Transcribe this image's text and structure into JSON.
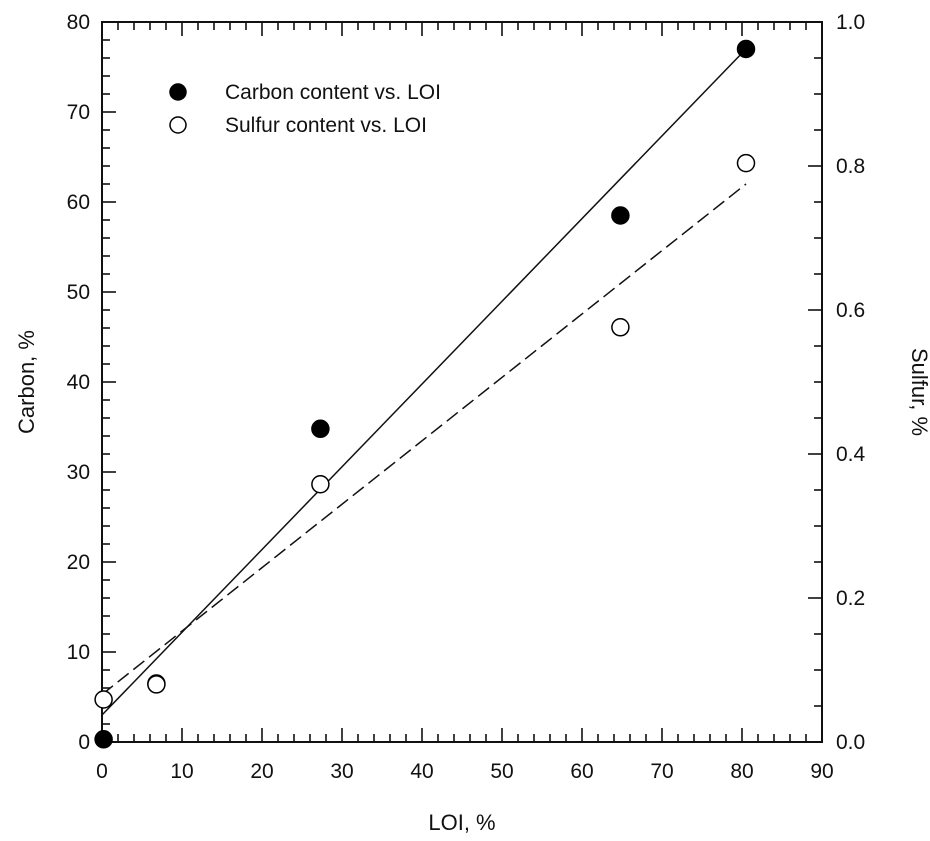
{
  "chart_data": {
    "type": "scatter",
    "xlabel": "LOI, %",
    "ylabel_left": "Carbon, %",
    "ylabel_right": "Sulfur, %",
    "xlim": [
      0,
      90
    ],
    "ylim_left": [
      0,
      80
    ],
    "ylim_right": [
      0,
      1.0
    ],
    "x_ticks": [
      0,
      10,
      20,
      30,
      40,
      50,
      60,
      70,
      80,
      90
    ],
    "y_left_ticks": [
      0,
      10,
      20,
      30,
      40,
      50,
      60,
      70,
      80
    ],
    "y_right_ticks": [
      "0.0",
      "0.2",
      "0.4",
      "0.6",
      "0.8",
      "1.0"
    ],
    "grid": false,
    "legend_position": "top-left",
    "series": [
      {
        "name": "Carbon content vs. LOI",
        "axis": "left",
        "marker": "filled-circle",
        "points": [
          [
            0.2,
            0.3
          ],
          [
            6.8,
            6.5
          ],
          [
            27.3,
            34.8
          ],
          [
            64.8,
            58.5
          ],
          [
            80.5,
            77.0
          ]
        ],
        "fit": {
          "style": "solid",
          "x": [
            0,
            80.5
          ],
          "y": [
            3.0,
            77.0
          ]
        }
      },
      {
        "name": "Sulfur content vs. LOI",
        "axis": "right",
        "marker": "open-circle",
        "points": [
          [
            0.2,
            0.059
          ],
          [
            6.8,
            0.08
          ],
          [
            27.3,
            0.358
          ],
          [
            64.8,
            0.576
          ],
          [
            80.5,
            0.804
          ]
        ],
        "fit": {
          "style": "dashed",
          "x": [
            0,
            80.5
          ],
          "y": [
            0.066,
            0.775
          ]
        }
      }
    ]
  }
}
